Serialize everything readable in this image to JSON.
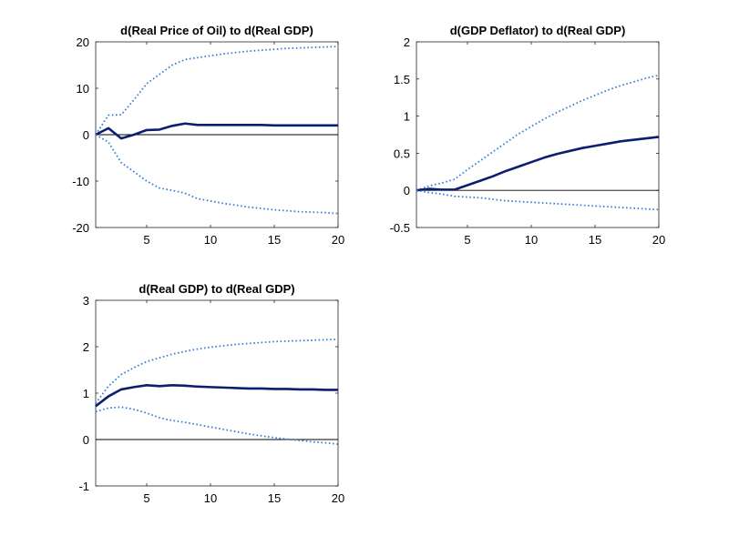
{
  "chart_data": [
    {
      "type": "line",
      "title": "d(Real Price of Oil) to d(Real GDP)",
      "xlabel": "",
      "ylabel": "",
      "xlim": [
        1,
        20
      ],
      "ylim": [
        -20,
        20
      ],
      "xticks": [
        5,
        10,
        15,
        20
      ],
      "yticks": [
        -20,
        -10,
        0,
        10,
        20
      ],
      "ytick_labels": [
        "-20",
        "-10",
        "0",
        "10",
        "20"
      ],
      "x": [
        1,
        2,
        3,
        4,
        5,
        6,
        7,
        8,
        9,
        10,
        11,
        12,
        13,
        14,
        15,
        16,
        17,
        18,
        19,
        20
      ],
      "zero_line": true,
      "series": [
        {
          "role": "upper",
          "style": "dotted",
          "color": "#3a7fd5",
          "values": [
            0,
            4.2,
            4.3,
            7.5,
            11,
            13,
            15,
            16.2,
            16.6,
            17,
            17.4,
            17.7,
            18,
            18.2,
            18.4,
            18.6,
            18.7,
            18.8,
            18.9,
            19
          ]
        },
        {
          "role": "response",
          "style": "solid",
          "color": "#0b1f6e",
          "values": [
            0,
            1.4,
            -0.8,
            0,
            1,
            1.1,
            1.9,
            2.4,
            2.1,
            2.1,
            2.1,
            2.1,
            2.1,
            2.1,
            2,
            2,
            2,
            2,
            2,
            2
          ]
        },
        {
          "role": "lower",
          "style": "dotted",
          "color": "#3a7fd5",
          "values": [
            0,
            -1.6,
            -6,
            -8,
            -10,
            -11.5,
            -12,
            -12.6,
            -13.8,
            -14.3,
            -14.8,
            -15.2,
            -15.6,
            -15.9,
            -16.2,
            -16.4,
            -16.6,
            -16.7,
            -16.8,
            -17
          ]
        }
      ]
    },
    {
      "type": "line",
      "title": "d(GDP Deflator) to d(Real GDP)",
      "xlabel": "",
      "ylabel": "",
      "xlim": [
        1,
        20
      ],
      "ylim": [
        -0.5,
        2
      ],
      "xticks": [
        5,
        10,
        15,
        20
      ],
      "yticks": [
        -0.5,
        0,
        0.5,
        1,
        1.5,
        2
      ],
      "ytick_labels": [
        "-0.5",
        "0",
        "0.5",
        "1",
        "1.5",
        "2"
      ],
      "x": [
        1,
        2,
        3,
        4,
        5,
        6,
        7,
        8,
        9,
        10,
        11,
        12,
        13,
        14,
        15,
        16,
        17,
        18,
        19,
        20
      ],
      "zero_line": true,
      "series": [
        {
          "role": "upper",
          "style": "dotted",
          "color": "#3a7fd5",
          "values": [
            0,
            0.06,
            0.1,
            0.15,
            0.28,
            0.4,
            0.52,
            0.64,
            0.76,
            0.86,
            0.96,
            1.05,
            1.13,
            1.21,
            1.28,
            1.35,
            1.41,
            1.46,
            1.51,
            1.55
          ]
        },
        {
          "role": "response",
          "style": "solid",
          "color": "#0b1f6e",
          "values": [
            0,
            0.02,
            0.01,
            0.01,
            0.07,
            0.13,
            0.19,
            0.26,
            0.32,
            0.38,
            0.44,
            0.49,
            0.53,
            0.57,
            0.6,
            0.63,
            0.66,
            0.68,
            0.7,
            0.72
          ]
        },
        {
          "role": "lower",
          "style": "dotted",
          "color": "#3a7fd5",
          "values": [
            0,
            -0.03,
            -0.05,
            -0.08,
            -0.09,
            -0.1,
            -0.12,
            -0.14,
            -0.15,
            -0.16,
            -0.17,
            -0.18,
            -0.19,
            -0.2,
            -0.21,
            -0.22,
            -0.23,
            -0.24,
            -0.25,
            -0.26
          ]
        }
      ]
    },
    {
      "type": "line",
      "title": "d(Real GDP) to d(Real GDP)",
      "xlabel": "",
      "ylabel": "",
      "xlim": [
        1,
        20
      ],
      "ylim": [
        -1,
        3
      ],
      "xticks": [
        5,
        10,
        15,
        20
      ],
      "yticks": [
        -1,
        0,
        1,
        2,
        3
      ],
      "ytick_labels": [
        "-1",
        "0",
        "1",
        "2",
        "3"
      ],
      "x": [
        1,
        2,
        3,
        4,
        5,
        6,
        7,
        8,
        9,
        10,
        11,
        12,
        13,
        14,
        15,
        16,
        17,
        18,
        19,
        20
      ],
      "zero_line": true,
      "series": [
        {
          "role": "upper",
          "style": "dotted",
          "color": "#3a7fd5",
          "values": [
            0.78,
            1.15,
            1.4,
            1.55,
            1.68,
            1.76,
            1.84,
            1.9,
            1.95,
            1.99,
            2.02,
            2.05,
            2.07,
            2.09,
            2.11,
            2.12,
            2.13,
            2.14,
            2.15,
            2.16
          ]
        },
        {
          "role": "response",
          "style": "solid",
          "color": "#0b1f6e",
          "values": [
            0.72,
            0.93,
            1.08,
            1.13,
            1.17,
            1.15,
            1.17,
            1.16,
            1.14,
            1.13,
            1.12,
            1.11,
            1.1,
            1.1,
            1.09,
            1.09,
            1.08,
            1.08,
            1.07,
            1.07
          ]
        },
        {
          "role": "lower",
          "style": "dotted",
          "color": "#3a7fd5",
          "values": [
            0.6,
            0.68,
            0.7,
            0.65,
            0.57,
            0.47,
            0.41,
            0.37,
            0.32,
            0.27,
            0.22,
            0.17,
            0.12,
            0.08,
            0.04,
            0.01,
            -0.02,
            -0.05,
            -0.07,
            -0.1
          ]
        }
      ]
    }
  ]
}
